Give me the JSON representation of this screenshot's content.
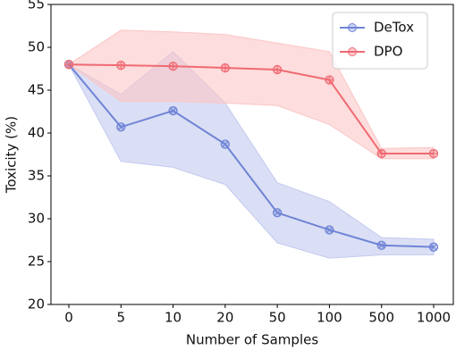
{
  "chart_data": {
    "type": "line",
    "xlabel": "Number of Samples",
    "ylabel": "Toxicity (%)",
    "categories": [
      "0",
      "5",
      "10",
      "20",
      "50",
      "100",
      "500",
      "1000"
    ],
    "series": [
      {
        "name": "DeTox",
        "color": "#6f84d6",
        "band_color": "#c3c9ef",
        "values": [
          48,
          40.7,
          42.6,
          38.7,
          30.7,
          28.7,
          26.9,
          26.7
        ],
        "lower": [
          48,
          36.7,
          36.0,
          34.0,
          27.2,
          25.4,
          25.8,
          25.8
        ],
        "upper": [
          48,
          44.5,
          49.5,
          43.5,
          34.2,
          32.0,
          27.8,
          27.6
        ]
      },
      {
        "name": "DPO",
        "color": "#f06a72",
        "band_color": "#fbc6c6",
        "values": [
          48,
          47.9,
          47.8,
          47.6,
          47.4,
          46.2,
          37.6,
          37.6
        ],
        "lower": [
          48,
          43.7,
          43.7,
          43.5,
          43.2,
          41.0,
          37.0,
          37.0
        ],
        "upper": [
          48,
          52.0,
          51.8,
          51.5,
          50.5,
          49.5,
          38.2,
          38.3
        ]
      }
    ],
    "ylim": [
      20,
      55
    ],
    "yticks": [
      20,
      25,
      30,
      35,
      40,
      45,
      50,
      55
    ],
    "legend": "upper right"
  }
}
